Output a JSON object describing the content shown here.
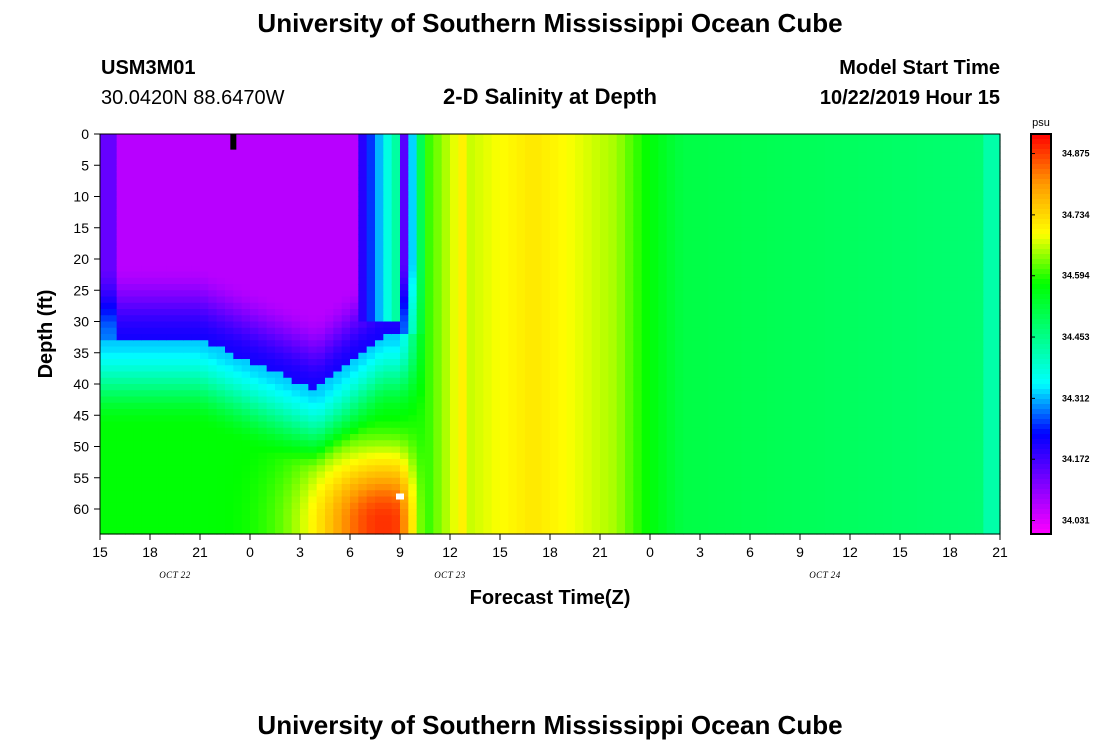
{
  "page": {
    "title_top": "University of Southern Mississippi Ocean Cube",
    "title_bottom": "University of Southern Mississippi Ocean Cube"
  },
  "header": {
    "station_id": "USM3M01",
    "location": "30.0420N 88.6470W",
    "plot_title": "2-D Salinity at Depth",
    "model_start_label": "Model Start Time",
    "model_start_value": "10/22/2019 Hour 15"
  },
  "colors": {
    "colormap": [
      "#ff00ff",
      "#8000ff",
      "#0000ff",
      "#00ffff",
      "#00ff80",
      "#00ff00",
      "#ffff00",
      "#ff9900",
      "#ff0000"
    ]
  },
  "chart_data": {
    "type": "heatmap",
    "title": "2-D Salinity at Depth",
    "xlabel": "Forecast Time(Z)",
    "ylabel": "Depth (ft)",
    "x_ticks": [
      "15",
      "18",
      "21",
      "0",
      "3",
      "6",
      "9",
      "12",
      "15",
      "18",
      "21",
      "0",
      "3",
      "6",
      "9",
      "12",
      "15",
      "18",
      "21"
    ],
    "x_range_hours": [
      0,
      54
    ],
    "date_labels": [
      {
        "text": "OCT 22",
        "hour": 4.5
      },
      {
        "text": "OCT 23",
        "hour": 21
      },
      {
        "text": "OCT 24",
        "hour": 43.5
      }
    ],
    "y_ticks": [
      0,
      5,
      10,
      15,
      20,
      25,
      30,
      35,
      40,
      45,
      50,
      55,
      60
    ],
    "ylim": [
      0,
      64
    ],
    "colorbar": {
      "unit": "psu",
      "labels": [
        "34.875",
        "34.734",
        "34.594",
        "34.453",
        "34.312",
        "34.172",
        "34.031"
      ],
      "range": [
        34.0,
        34.92
      ]
    },
    "markers": [
      {
        "type": "surface-marker",
        "hour": 8,
        "depth_from": 0,
        "depth_to": 2.5,
        "color": "#000000"
      },
      {
        "type": "station-marker",
        "hour": 18,
        "depth": 58,
        "color": "#ffffff"
      }
    ]
  }
}
